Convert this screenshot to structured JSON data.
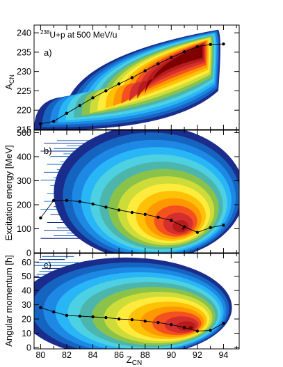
{
  "chart_data": [
    {
      "type": "heatmap",
      "panel_label": "a)",
      "annotation": "238U+p at 500 MeV/u",
      "annotation_superscript": "238",
      "annotation_text": "U+p at 500 MeV/u",
      "xlabel": "",
      "ylabel": "A",
      "ylabel_sub": "CN",
      "xlim": [
        79.5,
        95.2
      ],
      "ylim": [
        215,
        242
      ],
      "yticks": [
        215,
        220,
        225,
        230,
        235,
        240
      ],
      "mean_series": {
        "x": [
          80,
          81,
          82,
          83,
          84,
          85,
          86,
          87,
          88,
          89,
          90,
          91,
          92,
          93,
          94
        ],
        "y": [
          216.5,
          217.1,
          219.2,
          221.2,
          223.2,
          225.0,
          226.8,
          228.4,
          230.2,
          232.0,
          233.6,
          235.1,
          236.4,
          237.0,
          237.1
        ]
      }
    },
    {
      "type": "heatmap",
      "panel_label": "b)",
      "xlabel": "",
      "ylabel": "Excitation energy [MeV]",
      "xlim": [
        79.5,
        95.2
      ],
      "ylim": [
        0,
        510
      ],
      "yticks": [
        0,
        100,
        200,
        300,
        400,
        500
      ],
      "mean_series": {
        "x": [
          80,
          81,
          82,
          83,
          84,
          85,
          86,
          87,
          88,
          89,
          90,
          91,
          92,
          93,
          94
        ],
        "y": [
          145,
          218,
          218,
          213,
          203,
          190,
          178,
          168,
          160,
          148,
          135,
          108,
          85,
          105,
          115
        ]
      }
    },
    {
      "type": "heatmap",
      "panel_label": "c)",
      "xlabel": "Z",
      "xlabel_sub": "CN",
      "ylabel": "Angular momentum [ħ]",
      "xlim": [
        79.5,
        95.2
      ],
      "ylim": [
        -1,
        66
      ],
      "yticks": [
        0,
        10,
        20,
        30,
        40,
        50,
        60
      ],
      "xticks": [
        80,
        82,
        84,
        86,
        88,
        90,
        92,
        94
      ],
      "mean_series": {
        "x": [
          80,
          81,
          82,
          83,
          84,
          85,
          86,
          87,
          88,
          89,
          90,
          91,
          92,
          93,
          94
        ],
        "y": [
          28,
          25,
          22.5,
          22,
          21.5,
          21,
          20,
          19.5,
          18.5,
          17.5,
          16,
          14,
          11.5,
          12,
          17
        ]
      }
    }
  ],
  "colors": {
    "palette": [
      "#1a2d8c",
      "#1565c0",
      "#1e88e5",
      "#29b6f6",
      "#4dd0e1",
      "#4db6ac",
      "#8bc34a",
      "#cddc39",
      "#ffeb3b",
      "#ffc107",
      "#ff9800",
      "#f4511e",
      "#d32f2f",
      "#b71c1c",
      "#7f0000"
    ],
    "marker": "#000000",
    "frame": "#000000"
  }
}
